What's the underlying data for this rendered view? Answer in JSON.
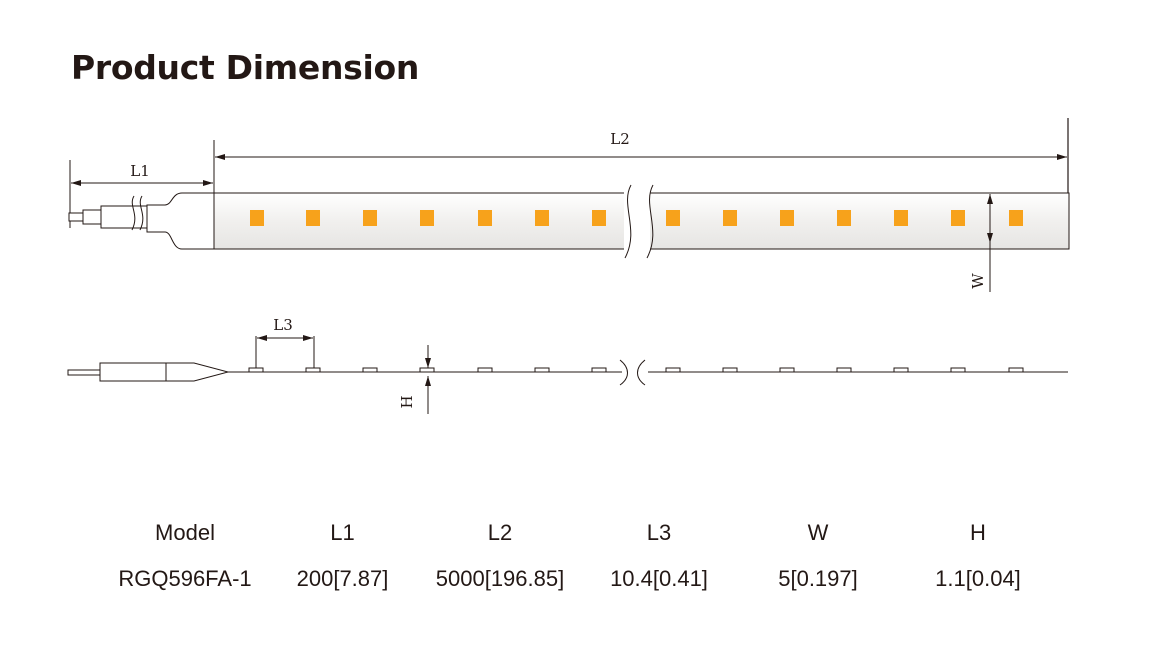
{
  "title": "Product Dimension",
  "drawing": {
    "labels": {
      "l1": "L1",
      "l2": "L2",
      "l3": "L3",
      "w": "W",
      "h": "H"
    },
    "strip_color": "#f4f3f1",
    "led_color": "#f7a21b",
    "led_count_top": 14,
    "led_count_side": 14
  },
  "table": {
    "headers": [
      "Model",
      "L1",
      "L2",
      "L3",
      "W",
      "H"
    ],
    "rows": [
      [
        "RGQ596FA-1",
        "200[7.87]",
        "5000[196.85]",
        "10.4[0.41]",
        "5[0.197]",
        "1.1[0.04]"
      ]
    ]
  }
}
